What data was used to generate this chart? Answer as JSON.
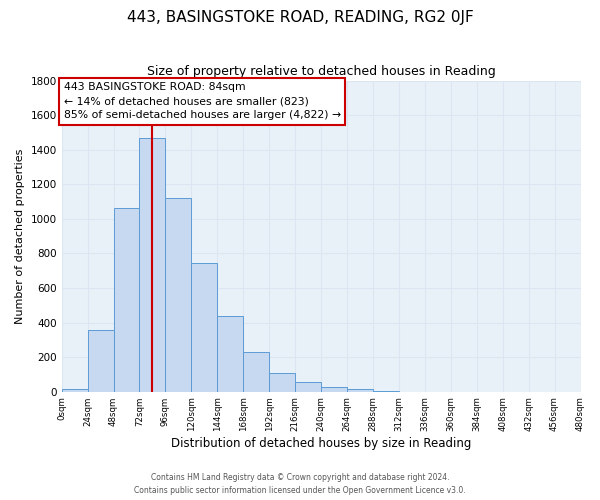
{
  "title": "443, BASINGSTOKE ROAD, READING, RG2 0JF",
  "subtitle": "Size of property relative to detached houses in Reading",
  "xlabel": "Distribution of detached houses by size in Reading",
  "ylabel": "Number of detached properties",
  "bar_color": "#c6d9f0",
  "bar_edge_color": "#5b9bd5",
  "grid_color": "#dce6f2",
  "bg_color": "#e8f0f8",
  "annotation_box_edge": "#cc0000",
  "vline_color": "#cc0000",
  "bin_edges": [
    0,
    24,
    48,
    72,
    96,
    120,
    144,
    168,
    192,
    216,
    240,
    264,
    288,
    312,
    336,
    360,
    384,
    408,
    432,
    456,
    480
  ],
  "counts": [
    15,
    355,
    1065,
    1465,
    1120,
    745,
    440,
    230,
    110,
    55,
    25,
    18,
    5,
    0,
    0,
    0,
    0,
    0,
    0,
    0
  ],
  "property_size": 84,
  "annotation_title": "443 BASINGSTOKE ROAD: 84sqm",
  "annotation_line1": "← 14% of detached houses are smaller (823)",
  "annotation_line2": "85% of semi-detached houses are larger (4,822) →",
  "footnote1": "Contains HM Land Registry data © Crown copyright and database right 2024.",
  "footnote2": "Contains public sector information licensed under the Open Government Licence v3.0.",
  "ylim": [
    0,
    1800
  ],
  "xlim": [
    0,
    480
  ],
  "yticks": [
    0,
    200,
    400,
    600,
    800,
    1000,
    1200,
    1400,
    1600,
    1800
  ],
  "xtick_step": 24
}
